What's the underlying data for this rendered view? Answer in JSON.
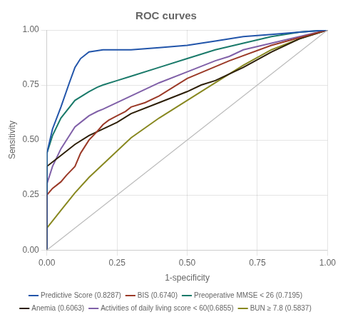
{
  "chart_data": {
    "type": "line",
    "title": "ROC curves",
    "x_label": "1-specificity",
    "y_label": "Sensitivity",
    "xlim": [
      0,
      1
    ],
    "ylim": [
      0,
      1
    ],
    "xticks": [
      {
        "value": 0,
        "label": "0.00"
      },
      {
        "value": 0.25,
        "label": "0.25"
      },
      {
        "value": 0.5,
        "label": "0.50"
      },
      {
        "value": 0.75,
        "label": "0.75"
      },
      {
        "value": 1,
        "label": "1.00"
      }
    ],
    "yticks": [
      {
        "value": 0,
        "label": "0.00"
      },
      {
        "value": 0.25,
        "label": "0.25"
      },
      {
        "value": 0.5,
        "label": "0.50"
      },
      {
        "value": 0.75,
        "label": "0.75"
      },
      {
        "value": 1,
        "label": "1.00"
      }
    ],
    "grid": true,
    "legend": "bottom",
    "series": [
      {
        "color": "#bbbbbb",
        "x": [
          0,
          1
        ],
        "values": [
          0,
          1
        ]
      },
      {
        "name": "Predictive Score (0.8287)",
        "color": "#2255aa",
        "x": [
          0.0,
          0.0,
          0.02,
          0.05,
          0.08,
          0.1,
          0.12,
          0.15,
          0.2,
          0.25,
          0.3,
          0.4,
          0.5,
          0.6,
          0.7,
          0.8,
          0.9,
          1.0
        ],
        "values": [
          0.0,
          0.44,
          0.55,
          0.65,
          0.76,
          0.83,
          0.87,
          0.9,
          0.91,
          0.91,
          0.91,
          0.92,
          0.93,
          0.95,
          0.97,
          0.98,
          0.99,
          1.0
        ]
      },
      {
        "name": "BIS (0.6740)",
        "color": "#9b3a28",
        "x": [
          0.0,
          0.0,
          0.02,
          0.05,
          0.07,
          0.1,
          0.12,
          0.15,
          0.18,
          0.2,
          0.22,
          0.25,
          0.28,
          0.3,
          0.35,
          0.4,
          0.5,
          0.65,
          0.8,
          1.0
        ],
        "values": [
          0.0,
          0.25,
          0.28,
          0.31,
          0.34,
          0.38,
          0.44,
          0.5,
          0.54,
          0.57,
          0.59,
          0.61,
          0.63,
          0.65,
          0.67,
          0.7,
          0.78,
          0.86,
          0.93,
          1.0
        ]
      },
      {
        "name": "Preoperative MMSE < 26 (0.7195)",
        "color": "#1a7a6a",
        "x": [
          0.0,
          0.0,
          0.02,
          0.05,
          0.1,
          0.15,
          0.18,
          0.2,
          0.25,
          0.3,
          0.4,
          0.5,
          0.6,
          0.7,
          0.8,
          0.9,
          1.0
        ],
        "values": [
          0.0,
          0.44,
          0.52,
          0.6,
          0.68,
          0.72,
          0.74,
          0.75,
          0.77,
          0.79,
          0.83,
          0.87,
          0.91,
          0.94,
          0.97,
          0.99,
          1.0
        ]
      },
      {
        "name": "Anemia (0.6063)",
        "color": "#2d1f08",
        "x": [
          0.0,
          0.0,
          0.05,
          0.1,
          0.15,
          0.2,
          0.25,
          0.3,
          0.4,
          0.5,
          0.55,
          0.6,
          0.65,
          0.7,
          0.8,
          0.9,
          1.0
        ],
        "values": [
          0.0,
          0.38,
          0.43,
          0.48,
          0.52,
          0.55,
          0.58,
          0.62,
          0.67,
          0.72,
          0.75,
          0.77,
          0.8,
          0.83,
          0.9,
          0.96,
          1.0
        ]
      },
      {
        "name": "Activities of daily living score < 60(0.6855)",
        "color": "#8060a8",
        "x": [
          0.0,
          0.0,
          0.02,
          0.05,
          0.08,
          0.1,
          0.13,
          0.15,
          0.18,
          0.2,
          0.25,
          0.3,
          0.4,
          0.5,
          0.6,
          0.65,
          0.7,
          0.8,
          0.9,
          1.0
        ],
        "values": [
          0.0,
          0.3,
          0.38,
          0.46,
          0.52,
          0.56,
          0.59,
          0.61,
          0.63,
          0.64,
          0.67,
          0.7,
          0.76,
          0.81,
          0.86,
          0.88,
          0.91,
          0.94,
          0.97,
          1.0
        ]
      },
      {
        "name": "BUN ≥ 7.8 (0.5837)",
        "color": "#888820",
        "x": [
          0.0,
          0.0,
          0.05,
          0.1,
          0.15,
          0.2,
          0.25,
          0.3,
          0.4,
          0.5,
          0.6,
          0.7,
          0.8,
          0.9,
          1.0
        ],
        "values": [
          0.0,
          0.1,
          0.18,
          0.26,
          0.33,
          0.39,
          0.45,
          0.51,
          0.6,
          0.68,
          0.76,
          0.84,
          0.91,
          0.96,
          1.0
        ]
      }
    ]
  }
}
